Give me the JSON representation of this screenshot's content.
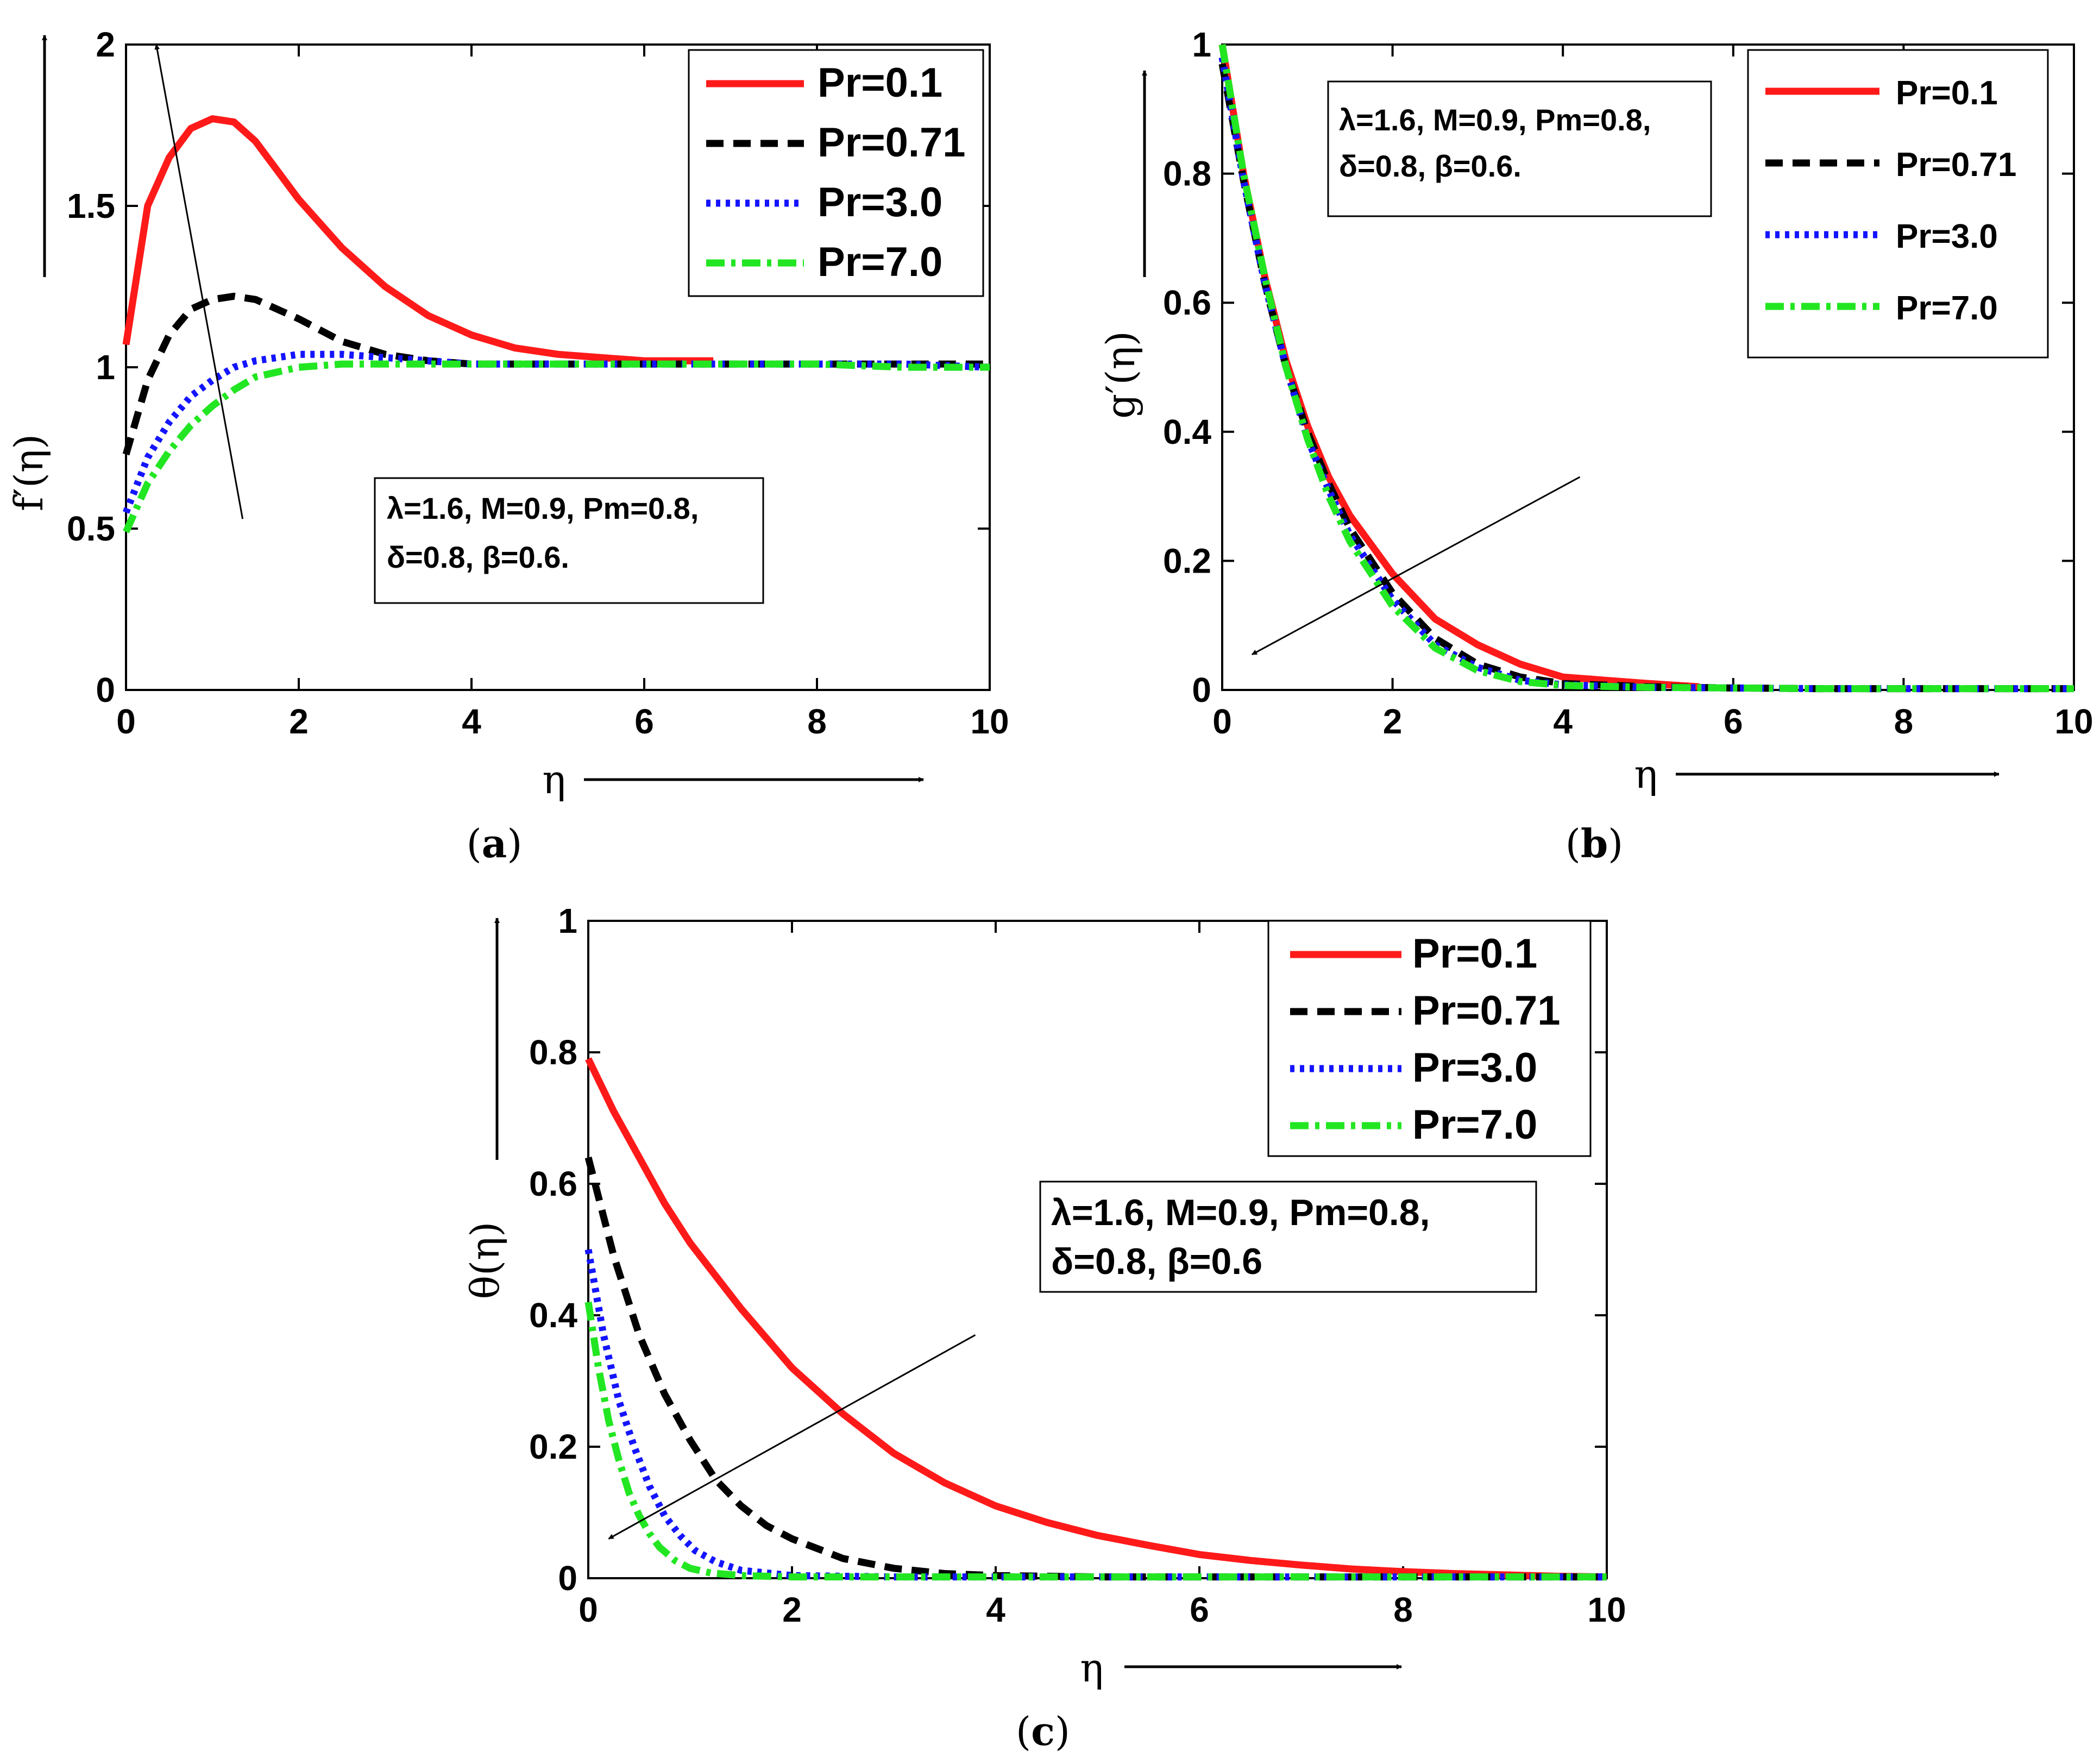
{
  "colors": {
    "Pr=0.1": "#ff1a1a",
    "Pr=0.71": "#000000",
    "Pr=3.0": "#1414ff",
    "Pr=7.0": "#22e622"
  },
  "chart_data": [
    {
      "id": "a",
      "type": "line",
      "caption": "a",
      "xlabel": "η",
      "ylabel": "f′(η)",
      "xlim": [
        0,
        10
      ],
      "ylim": [
        0,
        2
      ],
      "xticks": [
        0,
        2,
        4,
        6,
        8,
        10
      ],
      "yticks": [
        0,
        0.5,
        1,
        1.5,
        2
      ],
      "xtick_labels": [
        "0",
        "2",
        "4",
        "6",
        "8",
        "10"
      ],
      "ytick_labels": [
        "0",
        "0.5",
        "1",
        "1.5",
        "2"
      ],
      "legend_position": "top-right",
      "annotation_lines": [
        "λ=1.6, M=0.9, Pm=0.8,",
        "δ=0.8, β=0.6."
      ],
      "trend_arrow": {
        "from": [
          1.35,
          0.53
        ],
        "to": [
          0.35,
          2.0
        ]
      },
      "series": [
        {
          "name": "Pr=0.1",
          "style": "solid",
          "x": [
            0,
            0.25,
            0.5,
            0.75,
            1.0,
            1.25,
            1.5,
            2.0,
            2.5,
            3.0,
            3.5,
            4.0,
            4.5,
            5.0,
            5.5,
            6.0,
            6.5,
            6.8
          ],
          "y": [
            1.07,
            1.5,
            1.65,
            1.74,
            1.77,
            1.76,
            1.7,
            1.52,
            1.37,
            1.25,
            1.16,
            1.1,
            1.06,
            1.04,
            1.03,
            1.02,
            1.02,
            1.02
          ]
        },
        {
          "name": "Pr=0.71",
          "style": "dashed",
          "x": [
            0,
            0.25,
            0.5,
            0.75,
            1.0,
            1.25,
            1.5,
            2.0,
            2.5,
            3.0,
            3.5,
            4.0,
            5.0,
            6.0,
            7.0,
            8.0,
            9.0,
            10.0
          ],
          "y": [
            0.73,
            0.96,
            1.1,
            1.18,
            1.21,
            1.22,
            1.21,
            1.15,
            1.08,
            1.04,
            1.02,
            1.01,
            1.01,
            1.01,
            1.01,
            1.01,
            1.01,
            1.01
          ]
        },
        {
          "name": "Pr=3.0",
          "style": "dotted",
          "x": [
            0,
            0.25,
            0.5,
            0.75,
            1.0,
            1.25,
            1.5,
            2.0,
            2.5,
            3.0,
            3.5,
            4.0,
            5.0,
            6.0,
            7.0,
            8.0,
            9.0,
            10.0
          ],
          "y": [
            0.55,
            0.72,
            0.83,
            0.91,
            0.96,
            1.0,
            1.02,
            1.04,
            1.04,
            1.03,
            1.02,
            1.01,
            1.01,
            1.01,
            1.01,
            1.01,
            1.01,
            1.0
          ]
        },
        {
          "name": "Pr=7.0",
          "style": "dashdot",
          "x": [
            0,
            0.25,
            0.5,
            0.75,
            1.0,
            1.25,
            1.5,
            2.0,
            2.5,
            3.0,
            4.0,
            5.0,
            6.0,
            7.0,
            8.0,
            9.0,
            10.0
          ],
          "y": [
            0.49,
            0.64,
            0.74,
            0.82,
            0.88,
            0.93,
            0.97,
            1.0,
            1.01,
            1.01,
            1.01,
            1.01,
            1.01,
            1.01,
            1.01,
            1.0,
            1.0
          ]
        }
      ]
    },
    {
      "id": "b",
      "type": "line",
      "caption": "b",
      "xlabel": "η",
      "ylabel": "g′(η)",
      "xlim": [
        0,
        10
      ],
      "ylim": [
        0,
        1
      ],
      "xticks": [
        0,
        2,
        4,
        6,
        8,
        10
      ],
      "yticks": [
        0,
        0.2,
        0.4,
        0.6,
        0.8,
        1
      ],
      "xtick_labels": [
        "0",
        "2",
        "4",
        "6",
        "8",
        "10"
      ],
      "ytick_labels": [
        "0",
        "0.2",
        "0.4",
        "0.6",
        "0.8",
        "1"
      ],
      "legend_position": "top-right",
      "annotation_lines": [
        "λ=1.6, M=0.9, Pm=0.8,",
        "δ=0.8, β=0.6."
      ],
      "trend_arrow": {
        "from": [
          4.2,
          0.33
        ],
        "to": [
          0.35,
          0.055
        ]
      },
      "series": [
        {
          "name": "Pr=0.1",
          "style": "solid",
          "x": [
            0,
            0.25,
            0.5,
            0.75,
            1.0,
            1.25,
            1.5,
            2.0,
            2.5,
            3.0,
            3.5,
            4.0,
            4.5,
            5.0,
            5.6
          ],
          "y": [
            1.0,
            0.8,
            0.64,
            0.51,
            0.41,
            0.33,
            0.27,
            0.18,
            0.11,
            0.07,
            0.04,
            0.02,
            0.015,
            0.01,
            0.005
          ]
        },
        {
          "name": "Pr=0.71",
          "style": "dashed",
          "x": [
            0,
            0.25,
            0.5,
            0.75,
            1.0,
            1.25,
            1.5,
            2.0,
            2.5,
            3.0,
            3.5,
            4.0,
            5.0,
            6.0,
            7.0,
            8.0,
            9.0,
            10.0
          ],
          "y": [
            0.97,
            0.79,
            0.63,
            0.5,
            0.4,
            0.32,
            0.25,
            0.15,
            0.08,
            0.04,
            0.02,
            0.01,
            0.005,
            0.003,
            0.002,
            0.002,
            0.002,
            0.002
          ]
        },
        {
          "name": "Pr=3.0",
          "style": "dotted",
          "x": [
            0,
            0.25,
            0.5,
            0.75,
            1.0,
            1.25,
            1.5,
            2.0,
            2.5,
            3.0,
            3.5,
            4.0,
            5.0,
            6.0,
            7.0,
            8.0,
            9.0,
            10.0
          ],
          "y": [
            0.98,
            0.79,
            0.63,
            0.5,
            0.39,
            0.31,
            0.24,
            0.14,
            0.07,
            0.035,
            0.015,
            0.008,
            0.004,
            0.003,
            0.002,
            0.002,
            0.002,
            0.002
          ]
        },
        {
          "name": "Pr=7.0",
          "style": "dashdot",
          "x": [
            0,
            0.25,
            0.5,
            0.75,
            1.0,
            1.25,
            1.5,
            2.0,
            2.5,
            3.0,
            3.5,
            4.0,
            5.0,
            6.0,
            7.0,
            8.0,
            9.0,
            10.0
          ],
          "y": [
            1.0,
            0.8,
            0.64,
            0.5,
            0.39,
            0.3,
            0.23,
            0.13,
            0.065,
            0.03,
            0.013,
            0.007,
            0.004,
            0.003,
            0.002,
            0.002,
            0.002,
            0.002
          ]
        }
      ]
    },
    {
      "id": "c",
      "type": "line",
      "caption": "c",
      "xlabel": "η",
      "ylabel": "θ(η)",
      "xlim": [
        0,
        10
      ],
      "ylim": [
        0,
        1
      ],
      "xticks": [
        0,
        2,
        4,
        6,
        8,
        10
      ],
      "yticks": [
        0,
        0.2,
        0.4,
        0.6,
        0.8,
        1
      ],
      "xtick_labels": [
        "0",
        "2",
        "4",
        "6",
        "8",
        "10"
      ],
      "ytick_labels": [
        "0",
        "0.2",
        "0.4",
        "0.6",
        "0.8",
        "1"
      ],
      "legend_position": "top-right",
      "annotation_lines": [
        "λ=1.6, M=0.9, Pm=0.8,",
        "δ=0.8, β=0.6"
      ],
      "trend_arrow": {
        "from": [
          3.8,
          0.37
        ],
        "to": [
          0.2,
          0.06
        ]
      },
      "series": [
        {
          "name": "Pr=0.1",
          "style": "solid",
          "x": [
            0,
            0.25,
            0.5,
            0.75,
            1.0,
            1.5,
            2.0,
            2.5,
            3.0,
            3.5,
            4.0,
            4.5,
            5.0,
            5.5,
            6.0,
            6.5,
            7.0,
            7.5,
            8.0,
            8.5,
            9.0,
            9.5,
            10.0
          ],
          "y": [
            0.79,
            0.71,
            0.64,
            0.57,
            0.51,
            0.41,
            0.32,
            0.25,
            0.19,
            0.145,
            0.11,
            0.085,
            0.065,
            0.05,
            0.036,
            0.027,
            0.02,
            0.014,
            0.01,
            0.007,
            0.005,
            0.003,
            0.002
          ]
        },
        {
          "name": "Pr=0.71",
          "style": "dashed",
          "x": [
            0,
            0.25,
            0.5,
            0.75,
            1.0,
            1.25,
            1.5,
            1.75,
            2.0,
            2.5,
            3.0,
            3.5,
            4.0,
            5.0,
            6.0,
            7.0,
            8.0,
            9.0,
            10.0
          ],
          "y": [
            0.64,
            0.49,
            0.37,
            0.28,
            0.21,
            0.15,
            0.11,
            0.08,
            0.06,
            0.03,
            0.015,
            0.007,
            0.004,
            0.002,
            0.002,
            0.002,
            0.002,
            0.002,
            0.002
          ]
        },
        {
          "name": "Pr=3.0",
          "style": "dotted",
          "x": [
            0,
            0.15,
            0.3,
            0.45,
            0.6,
            0.75,
            0.9,
            1.05,
            1.25,
            1.5,
            2.0,
            3.0,
            4.0,
            5.0,
            6.0,
            7.0,
            8.0,
            9.0,
            10.0
          ],
          "y": [
            0.5,
            0.37,
            0.27,
            0.2,
            0.14,
            0.095,
            0.065,
            0.042,
            0.025,
            0.012,
            0.004,
            0.002,
            0.002,
            0.002,
            0.002,
            0.002,
            0.002,
            0.002,
            0.002
          ]
        },
        {
          "name": "Pr=7.0",
          "style": "dashdot",
          "x": [
            0,
            0.1,
            0.2,
            0.3,
            0.4,
            0.5,
            0.6,
            0.7,
            0.85,
            1.0,
            1.2,
            1.5,
            2.0,
            3.0,
            4.0,
            5.0,
            6.0,
            7.0,
            8.0,
            9.0,
            10.0
          ],
          "y": [
            0.42,
            0.32,
            0.24,
            0.18,
            0.13,
            0.095,
            0.068,
            0.047,
            0.027,
            0.015,
            0.008,
            0.004,
            0.002,
            0.002,
            0.002,
            0.002,
            0.002,
            0.002,
            0.002,
            0.002,
            0.002
          ]
        }
      ]
    }
  ]
}
